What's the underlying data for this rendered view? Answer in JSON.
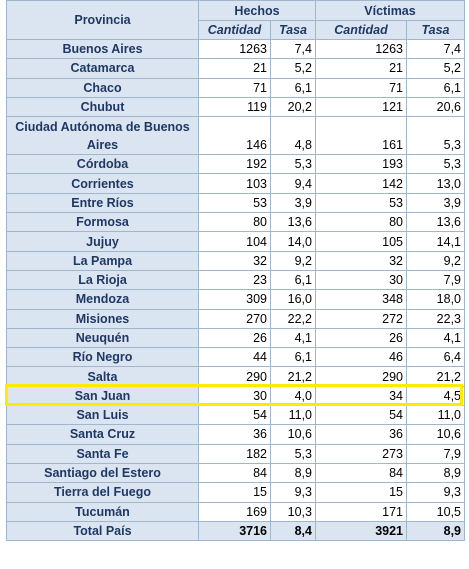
{
  "headers": {
    "province": "Provincia",
    "hechos": "Hechos",
    "victimas": "Víctimas",
    "cantidad": "Cantidad",
    "tasa": "Tasa"
  },
  "rows": [
    {
      "name": "Buenos Aires",
      "h_cant": "1263",
      "h_tasa": "7,4",
      "v_cant": "1263",
      "v_tasa": "7,4"
    },
    {
      "name": "Catamarca",
      "h_cant": "21",
      "h_tasa": "5,2",
      "v_cant": "21",
      "v_tasa": "5,2"
    },
    {
      "name": "Chaco",
      "h_cant": "71",
      "h_tasa": "6,1",
      "v_cant": "71",
      "v_tasa": "6,1"
    },
    {
      "name": "Chubut",
      "h_cant": "119",
      "h_tasa": "20,2",
      "v_cant": "121",
      "v_tasa": "20,6"
    },
    {
      "name": "Ciudad Autónoma de Buenos Aires",
      "h_cant": "146",
      "h_tasa": "4,8",
      "v_cant": "161",
      "v_tasa": "5,3"
    },
    {
      "name": "Córdoba",
      "h_cant": "192",
      "h_tasa": "5,3",
      "v_cant": "193",
      "v_tasa": "5,3"
    },
    {
      "name": "Corrientes",
      "h_cant": "103",
      "h_tasa": "9,4",
      "v_cant": "142",
      "v_tasa": "13,0"
    },
    {
      "name": "Entre Ríos",
      "h_cant": "53",
      "h_tasa": "3,9",
      "v_cant": "53",
      "v_tasa": "3,9"
    },
    {
      "name": "Formosa",
      "h_cant": "80",
      "h_tasa": "13,6",
      "v_cant": "80",
      "v_tasa": "13,6"
    },
    {
      "name": "Jujuy",
      "h_cant": "104",
      "h_tasa": "14,0",
      "v_cant": "105",
      "v_tasa": "14,1"
    },
    {
      "name": "La Pampa",
      "h_cant": "32",
      "h_tasa": "9,2",
      "v_cant": "32",
      "v_tasa": "9,2"
    },
    {
      "name": "La Rioja",
      "h_cant": "23",
      "h_tasa": "6,1",
      "v_cant": "30",
      "v_tasa": "7,9"
    },
    {
      "name": "Mendoza",
      "h_cant": "309",
      "h_tasa": "16,0",
      "v_cant": "348",
      "v_tasa": "18,0"
    },
    {
      "name": "Misiones",
      "h_cant": "270",
      "h_tasa": "22,2",
      "v_cant": "272",
      "v_tasa": "22,3"
    },
    {
      "name": "Neuquén",
      "h_cant": "26",
      "h_tasa": "4,1",
      "v_cant": "26",
      "v_tasa": "4,1"
    },
    {
      "name": "Río Negro",
      "h_cant": "44",
      "h_tasa": "6,1",
      "v_cant": "46",
      "v_tasa": "6,4"
    },
    {
      "name": "Salta",
      "h_cant": "290",
      "h_tasa": "21,2",
      "v_cant": "290",
      "v_tasa": "21,2"
    },
    {
      "name": "San Juan",
      "h_cant": "30",
      "h_tasa": "4,0",
      "v_cant": "34",
      "v_tasa": "4,5"
    },
    {
      "name": "San Luis",
      "h_cant": "54",
      "h_tasa": "11,0",
      "v_cant": "54",
      "v_tasa": "11,0"
    },
    {
      "name": "Santa Cruz",
      "h_cant": "36",
      "h_tasa": "10,6",
      "v_cant": "36",
      "v_tasa": "10,6"
    },
    {
      "name": "Santa Fe",
      "h_cant": "182",
      "h_tasa": "5,3",
      "v_cant": "273",
      "v_tasa": "7,9"
    },
    {
      "name": "Santiago del Estero",
      "h_cant": "84",
      "h_tasa": "8,9",
      "v_cant": "84",
      "v_tasa": "8,9"
    },
    {
      "name": "Tierra del Fuego",
      "h_cant": "15",
      "h_tasa": "9,3",
      "v_cant": "15",
      "v_tasa": "9,3"
    },
    {
      "name": "Tucumán",
      "h_cant": "169",
      "h_tasa": "10,3",
      "v_cant": "171",
      "v_tasa": "10,5"
    }
  ],
  "total": {
    "name": "Total País",
    "h_cant": "3716",
    "h_tasa": "8,4",
    "v_cant": "3921",
    "v_tasa": "8,9"
  },
  "highlight": {
    "row": "Salta",
    "color": "#ffea00"
  },
  "colors": {
    "header_bg": "#dbe5f1",
    "header_text": "#1f3864",
    "border": "#9fb7cc"
  }
}
